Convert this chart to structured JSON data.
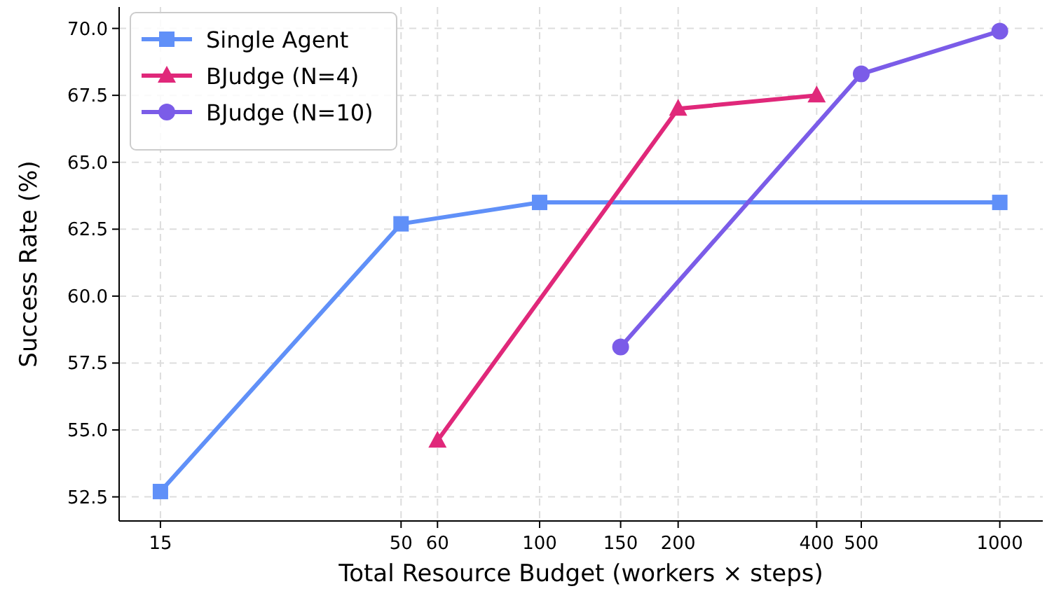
{
  "chart_data": {
    "type": "line",
    "xlabel": "Total Resource Budget (workers × steps)",
    "ylabel": "Success Rate (%)",
    "log": "x",
    "grid": true,
    "legend": "top left",
    "line_style": "solid",
    "xlim": [
      12.2,
      1240
    ],
    "xticks": [
      15,
      50,
      60,
      100,
      150,
      200,
      400,
      500,
      1000
    ],
    "ylim": [
      51.6,
      70.8
    ],
    "yticks": [
      {
        "value": 52.5,
        "label": "52.5"
      },
      {
        "value": 55,
        "label": "55.0"
      },
      {
        "value": 57.5,
        "label": "57.5"
      },
      {
        "value": 60,
        "label": "60.0"
      },
      {
        "value": 62.5,
        "label": "62.5"
      },
      {
        "value": 65,
        "label": "65.0"
      },
      {
        "value": 67.5,
        "label": "67.5"
      },
      {
        "value": 70,
        "label": "70.0"
      }
    ],
    "series": [
      {
        "name": "Single Agent",
        "color": "#6090f8",
        "marker": "square",
        "x": [
          15,
          50,
          100,
          1000
        ],
        "values": [
          52.7,
          62.7,
          63.5,
          63.5
        ]
      },
      {
        "name": "BJudge (N=4)",
        "color": "#e0287a",
        "marker": "triangle",
        "x": [
          60,
          200,
          400
        ],
        "values": [
          54.6,
          67.0,
          67.5
        ]
      },
      {
        "name": "BJudge (N=10)",
        "color": "#7b5ce8",
        "marker": "circle",
        "x": [
          150,
          500,
          1000
        ],
        "values": [
          58.1,
          68.3,
          69.9
        ]
      }
    ]
  }
}
